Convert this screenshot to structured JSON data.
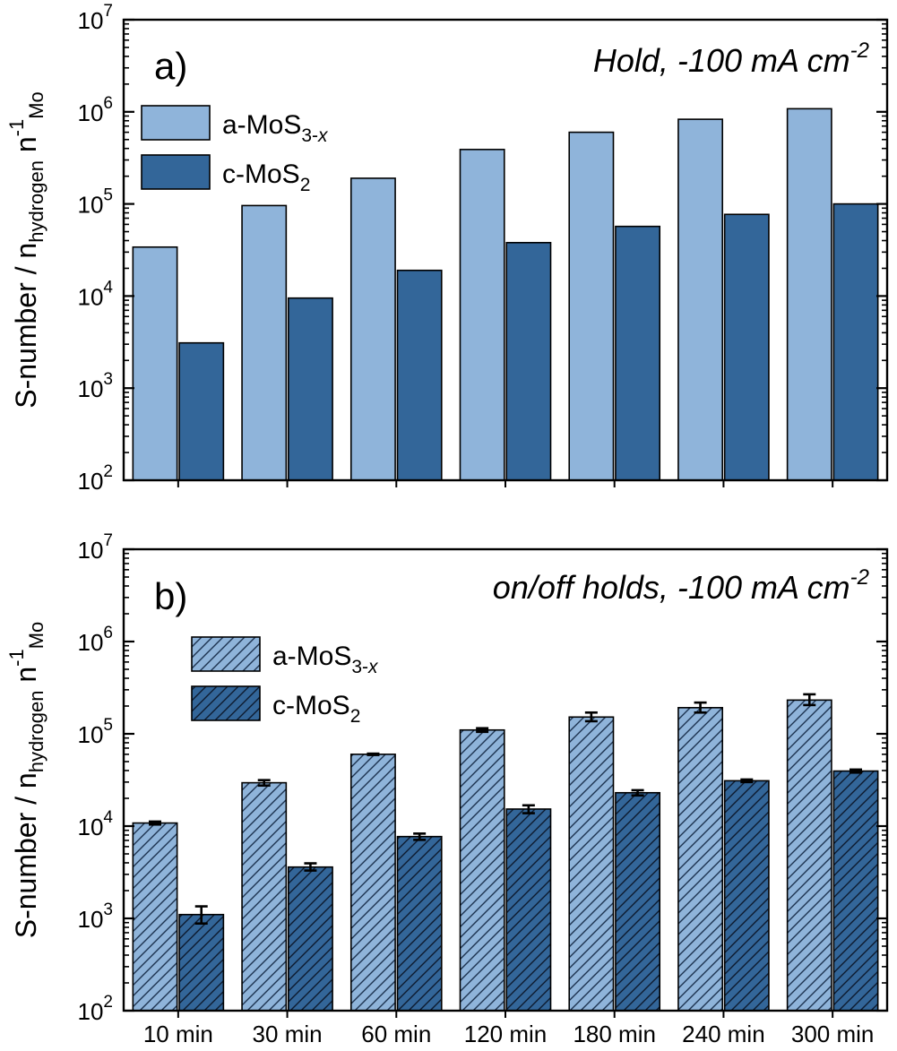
{
  "colors": {
    "a_MoS3x": "#8FB4DA",
    "c_MoS2": "#336699",
    "outline": "#000000"
  },
  "chart_data": [
    {
      "panel": "a",
      "type": "bar",
      "yscale": "log",
      "ylim": [
        100,
        10000000
      ],
      "panel_label": "a)",
      "annotation": {
        "prefix": "Hold, -100 mA cm",
        "sup": "-2"
      },
      "ylabel": {
        "main": "S-number / n",
        "sub": "hydrogen",
        "n2": " n",
        "sup": "-1",
        "sub2": "Mo"
      },
      "yticks": [
        {
          "value": 100,
          "base": "10",
          "exp": "2"
        },
        {
          "value": 1000,
          "base": "10",
          "exp": "3"
        },
        {
          "value": 10000,
          "base": "10",
          "exp": "4"
        },
        {
          "value": 100000,
          "base": "10",
          "exp": "5"
        },
        {
          "value": 1000000,
          "base": "10",
          "exp": "6"
        },
        {
          "value": 10000000,
          "base": "10",
          "exp": "7"
        }
      ],
      "legend": [
        {
          "base": "a-MoS",
          "sub": "3-",
          "subItalic": "x"
        },
        {
          "base": "c-MoS",
          "sub": "2",
          "subItalic": ""
        }
      ],
      "categories": [
        "10 min",
        "30 min",
        "60 min",
        "120 min",
        "180 min",
        "240 min",
        "300 min"
      ],
      "series": [
        {
          "name": "a-MoS3-x",
          "values": [
            34000,
            96000,
            190000,
            390000,
            600000,
            830000,
            1080000
          ],
          "hatched": false
        },
        {
          "name": "c-MoS2",
          "values": [
            3100,
            9500,
            19000,
            38000,
            57000,
            77000,
            100000
          ],
          "hatched": false
        }
      ],
      "show_xticklabels": false
    },
    {
      "panel": "b",
      "type": "bar",
      "yscale": "log",
      "ylim": [
        100,
        10000000
      ],
      "panel_label": "b)",
      "annotation": {
        "prefix": "on/off holds, -100 mA cm",
        "sup": "-2"
      },
      "ylabel": {
        "main": "S-number / n",
        "sub": "hydrogen",
        "n2": " n",
        "sup": "-1",
        "sub2": "Mo"
      },
      "yticks": [
        {
          "value": 100,
          "base": "10",
          "exp": "2"
        },
        {
          "value": 1000,
          "base": "10",
          "exp": "3"
        },
        {
          "value": 10000,
          "base": "10",
          "exp": "4"
        },
        {
          "value": 100000,
          "base": "10",
          "exp": "5"
        },
        {
          "value": 1000000,
          "base": "10",
          "exp": "6"
        },
        {
          "value": 10000000,
          "base": "10",
          "exp": "7"
        }
      ],
      "legend": [
        {
          "base": "a-MoS",
          "sub": "3-",
          "subItalic": "x"
        },
        {
          "base": "c-MoS",
          "sub": "2",
          "subItalic": ""
        }
      ],
      "categories": [
        "10 min",
        "30 min",
        "60 min",
        "120 min",
        "180 min",
        "240 min",
        "300 min"
      ],
      "series": [
        {
          "name": "a-MoS3-x",
          "values": [
            10800,
            29500,
            60000,
            110000,
            152000,
            192000,
            232000
          ],
          "err_low": [
            10400,
            27500,
            59000,
            105000,
            137000,
            170000,
            205000
          ],
          "err_high": [
            11200,
            31500,
            61000,
            115000,
            170000,
            218000,
            268000
          ],
          "hatched": true
        },
        {
          "name": "c-MoS2",
          "values": [
            1100,
            3600,
            7700,
            15300,
            23000,
            31000,
            39500
          ],
          "err_low": [
            880,
            3300,
            7100,
            13800,
            21500,
            30000,
            38000
          ],
          "err_high": [
            1350,
            3950,
            8300,
            16800,
            24500,
            32000,
            41000
          ],
          "hatched": true
        }
      ],
      "show_xticklabels": true
    }
  ]
}
